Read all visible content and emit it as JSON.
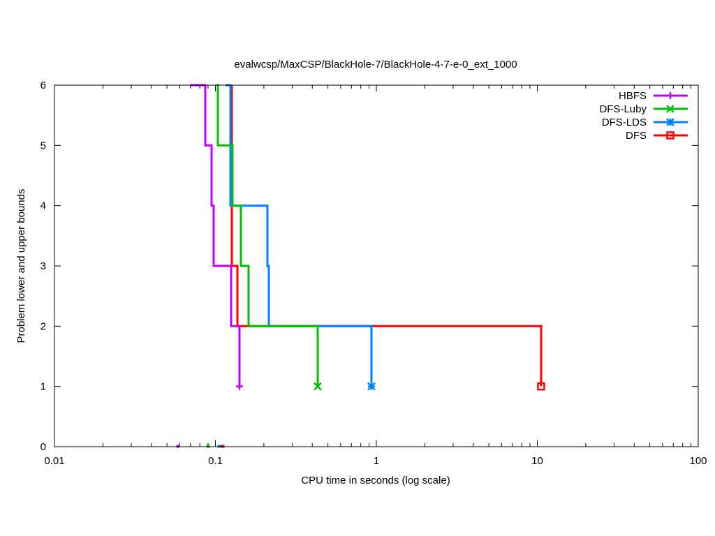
{
  "chart_data": {
    "type": "line",
    "title": "evalwcsp/MaxCSP/BlackHole-7/BlackHole-4-7-e-0_ext_1000",
    "xlabel": "CPU time in seconds (log scale)",
    "ylabel": "Problem lower and upper bounds",
    "xscale": "log",
    "xlim": [
      0.01,
      100
    ],
    "ylim": [
      0,
      6
    ],
    "xticks": [
      {
        "v": 0.01,
        "label": "0.01"
      },
      {
        "v": 0.1,
        "label": "0.1"
      },
      {
        "v": 1,
        "label": "1"
      },
      {
        "v": 10,
        "label": "10"
      },
      {
        "v": 100,
        "label": "100"
      }
    ],
    "yticks": [
      {
        "v": 0,
        "label": "0"
      },
      {
        "v": 1,
        "label": "1"
      },
      {
        "v": 2,
        "label": "2"
      },
      {
        "v": 3,
        "label": "3"
      },
      {
        "v": 4,
        "label": "4"
      },
      {
        "v": 5,
        "label": "5"
      },
      {
        "v": 6,
        "label": "6"
      }
    ],
    "legend_position": "top-right",
    "series": [
      {
        "name": "HBFS",
        "color": "#c000ff",
        "marker": "plus",
        "upper": [
          [
            0.0695,
            6
          ],
          [
            0.0865,
            6
          ],
          [
            0.0865,
            5
          ],
          [
            0.0947,
            5
          ],
          [
            0.0947,
            4
          ],
          [
            0.0975,
            4
          ],
          [
            0.0975,
            3
          ],
          [
            0.1252,
            3
          ],
          [
            0.1252,
            2
          ],
          [
            0.1411,
            2
          ],
          [
            0.1411,
            1
          ]
        ],
        "lower": [
          [
            0.0586,
            0
          ]
        ]
      },
      {
        "name": "DFS-Luby",
        "color": "#00c000",
        "marker": "cross",
        "upper": [
          [
            0.1015,
            6
          ],
          [
            0.1036,
            6
          ],
          [
            0.1036,
            5
          ],
          [
            0.1277,
            5
          ],
          [
            0.1277,
            4
          ],
          [
            0.144,
            4
          ],
          [
            0.144,
            3
          ],
          [
            0.1607,
            3
          ],
          [
            0.1607,
            2
          ],
          [
            0.432,
            2
          ],
          [
            0.432,
            1
          ]
        ],
        "lower": [
          [
            0.09,
            0
          ]
        ]
      },
      {
        "name": "DFS-LDS",
        "color": "#0080ff",
        "marker": "star",
        "upper": [
          [
            0.1156,
            6
          ],
          [
            0.124,
            6
          ],
          [
            0.124,
            4
          ],
          [
            0.2105,
            4
          ],
          [
            0.2105,
            3
          ],
          [
            0.2147,
            3
          ],
          [
            0.2147,
            2
          ],
          [
            0.932,
            2
          ],
          [
            0.932,
            1
          ]
        ],
        "lower": [
          [
            0.1057,
            0
          ]
        ]
      },
      {
        "name": "DFS",
        "color": "#ff0000",
        "marker": "square",
        "upper": [
          [
            0.1265,
            6
          ],
          [
            0.1265,
            3
          ],
          [
            0.137,
            3
          ],
          [
            0.137,
            2
          ],
          [
            10.56,
            2
          ],
          [
            10.56,
            1
          ]
        ],
        "lower": [
          [
            0.1111,
            0
          ]
        ]
      }
    ]
  }
}
